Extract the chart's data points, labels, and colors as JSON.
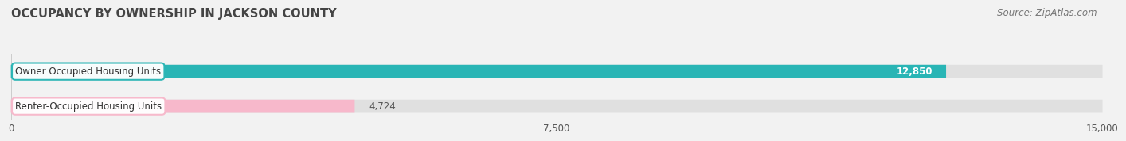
{
  "title": "OCCUPANCY BY OWNERSHIP IN JACKSON COUNTY",
  "source": "Source: ZipAtlas.com",
  "categories": [
    "Owner Occupied Housing Units",
    "Renter-Occupied Housing Units"
  ],
  "values": [
    12850,
    4724
  ],
  "bar_colors": [
    "#29b5b5",
    "#f7b8cb"
  ],
  "value_labels": [
    "12,850",
    "4,724"
  ],
  "xlim": [
    0,
    15000
  ],
  "xticks": [
    0,
    7500,
    15000
  ],
  "xtick_labels": [
    "0",
    "7,500",
    "15,000"
  ],
  "background_color": "#f2f2f2",
  "bar_background_color": "#e0e0e0",
  "title_fontsize": 10.5,
  "source_fontsize": 8.5,
  "label_fontsize": 8.5,
  "value_fontsize": 8.5
}
